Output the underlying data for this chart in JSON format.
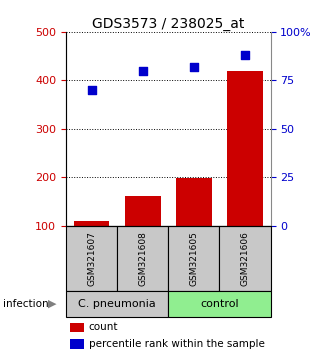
{
  "title": "GDS3573 / 238025_at",
  "samples": [
    "GSM321607",
    "GSM321608",
    "GSM321605",
    "GSM321606"
  ],
  "counts": [
    110,
    162,
    198,
    420
  ],
  "percentiles": [
    70,
    80,
    82,
    88
  ],
  "ylim_left": [
    100,
    500
  ],
  "ylim_right": [
    0,
    100
  ],
  "yticks_left": [
    100,
    200,
    300,
    400,
    500
  ],
  "yticks_right": [
    0,
    25,
    50,
    75,
    100
  ],
  "yticklabels_right": [
    "0",
    "25",
    "50",
    "75",
    "100%"
  ],
  "groups": [
    {
      "label": "C. pneumonia",
      "color": "#c8c8c8",
      "samples": [
        0,
        1
      ]
    },
    {
      "label": "control",
      "color": "#90ee90",
      "samples": [
        2,
        3
      ]
    }
  ],
  "bar_color": "#cc0000",
  "dot_color": "#0000cc",
  "bar_width": 0.7,
  "legend_count_label": "count",
  "legend_pct_label": "percentile rank within the sample",
  "infection_label": "infection",
  "title_fontsize": 10,
  "tick_fontsize": 8,
  "background_color": "#ffffff",
  "sample_box_color": "#c8c8c8"
}
